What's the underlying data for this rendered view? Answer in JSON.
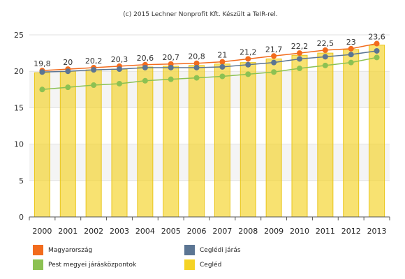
{
  "chart_data": {
    "type": "bar",
    "title": "(c) 2015 Lechner Nonprofit Kft. Készült a TeIR-rel.",
    "categories": [
      "2000",
      "2001",
      "2002",
      "2003",
      "2004",
      "2005",
      "2006",
      "2007",
      "2008",
      "2009",
      "2010",
      "2011",
      "2012",
      "2013"
    ],
    "ylim": [
      0,
      25
    ],
    "yticks": [
      0,
      5,
      10,
      15,
      20,
      25
    ],
    "grid": true,
    "legend_position": "bottom",
    "bar_series": {
      "name": "Cegléd",
      "color": "#F5D325",
      "values": [
        19.8,
        20,
        20.2,
        20.3,
        20.6,
        20.7,
        20.8,
        21,
        21.2,
        21.7,
        22.2,
        22.5,
        23,
        23.6
      ],
      "labels": [
        "19,8",
        "20",
        "20,2",
        "20,3",
        "20,6",
        "20,7",
        "20,8",
        "21",
        "21,2",
        "21,7",
        "22,2",
        "22,5",
        "23",
        "23,6"
      ]
    },
    "line_series": [
      {
        "name": "Magyarország",
        "color": "#F26B1D",
        "values": [
          20.1,
          20.3,
          20.5,
          20.7,
          20.9,
          21.0,
          21.1,
          21.3,
          21.7,
          22.1,
          22.5,
          22.9,
          23.1,
          23.8
        ]
      },
      {
        "name": "Ceglédi járás",
        "color": "#5B7593",
        "values": [
          19.9,
          20.0,
          20.2,
          20.3,
          20.5,
          20.5,
          20.5,
          20.6,
          20.9,
          21.2,
          21.7,
          22.0,
          22.3,
          22.8
        ]
      },
      {
        "name": "Pest megyei járásközpontok",
        "color": "#8CC152",
        "values": [
          17.5,
          17.8,
          18.1,
          18.3,
          18.7,
          18.9,
          19.1,
          19.3,
          19.6,
          19.9,
          20.4,
          20.8,
          21.2,
          21.9
        ]
      }
    ],
    "legend": [
      {
        "label": "Magyarország",
        "color": "#F26B1D"
      },
      {
        "label": "Ceglédi járás",
        "color": "#5B7593"
      },
      {
        "label": "Pest megyei járásközpontok",
        "color": "#8CC152"
      },
      {
        "label": "Cegléd",
        "color": "#F5D325"
      }
    ]
  }
}
